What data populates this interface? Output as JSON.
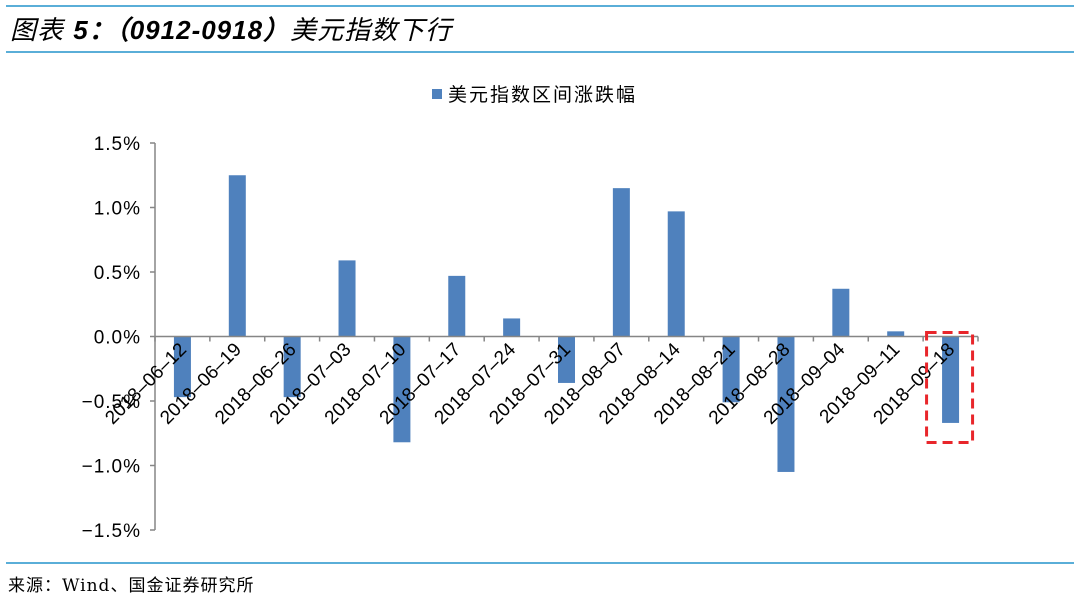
{
  "header": {
    "title_prefix": "图表 ",
    "title_number": "5：（0912-0918）",
    "title_suffix": "美元指数下行"
  },
  "footer": {
    "source": "来源：Wind、国金证券研究所"
  },
  "colors": {
    "bar": "#4f81bd",
    "rule": "#5aaed8",
    "highlight_box": "#e8262b",
    "axis": "#868686"
  },
  "chart_data": {
    "type": "bar",
    "title": "美元指数区间涨跌幅",
    "legend": [
      "美元指数区间涨跌幅"
    ],
    "legend_position": "top",
    "xlabel": "",
    "ylabel": "",
    "ylim": [
      -1.5,
      1.5
    ],
    "yticks": [
      "1.5%",
      "1.0%",
      "0.5%",
      "0.0%",
      "-0.5%",
      "-1.0%",
      "-1.5%"
    ],
    "grid": false,
    "categories": [
      "2018-06-12",
      "2018-06-19",
      "2018-06-26",
      "2018-07-03",
      "2018-07-10",
      "2018-07-17",
      "2018-07-24",
      "2018-07-31",
      "2018-08-07",
      "2018-08-14",
      "2018-08-21",
      "2018-08-28",
      "2018-09-04",
      "2018-09-11",
      "2018-09-18"
    ],
    "series": [
      {
        "name": "美元指数区间涨跌幅",
        "unit": "%",
        "values": [
          -0.47,
          1.25,
          -0.47,
          0.59,
          -0.82,
          0.47,
          0.14,
          -0.36,
          1.15,
          0.97,
          -0.51,
          -1.05,
          0.37,
          0.04,
          -0.67
        ]
      }
    ],
    "annotations": [
      {
        "type": "dashed-box",
        "target": "2018-09-18",
        "color": "#e8262b"
      }
    ]
  }
}
